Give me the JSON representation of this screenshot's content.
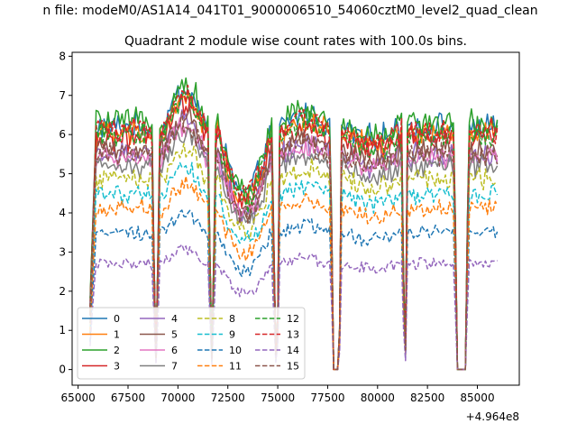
{
  "figure": {
    "suptitle": "n file: modeM0/AS1A14_041T01_9000006510_54060cztM0_level2_quad_clean",
    "title": "Quadrant 2 module wise count rates with 100.0s bins.",
    "x_offset_label": "+4.964e8"
  },
  "chart_data": {
    "type": "line",
    "title": "Quadrant 2 module wise count rates with 100.0s bins.",
    "xlabel": "",
    "ylabel": "",
    "xlim": [
      64700,
      87100
    ],
    "ylim": [
      -0.4,
      8.1
    ],
    "x_ticks": [
      65000,
      67500,
      70000,
      72500,
      75000,
      77500,
      80000,
      82500,
      85000
    ],
    "x_tick_labels": [
      "65000",
      "67500",
      "70000",
      "72500",
      "75000",
      "77500",
      "80000",
      "82500",
      "85000"
    ],
    "y_ticks": [
      0,
      1,
      2,
      3,
      4,
      5,
      6,
      7,
      8
    ],
    "y_tick_labels": [
      "0",
      "1",
      "2",
      "3",
      "4",
      "5",
      "6",
      "7",
      "8"
    ],
    "x_offset": "+4.964e8",
    "x_start": 65600,
    "x_step": 100,
    "gap_intervals": [
      [
        68750,
        69050
      ],
      [
        71550,
        71850
      ],
      [
        74750,
        75100
      ],
      [
        77650,
        78200
      ],
      [
        81250,
        81500
      ],
      [
        83850,
        84550
      ]
    ],
    "legend_location": "lower-left",
    "legend_columns": 4,
    "series": [
      {
        "name": "0",
        "color": "#1f77b4",
        "dash": "solid",
        "level": 6.2
      },
      {
        "name": "1",
        "color": "#ff7f0e",
        "dash": "solid",
        "level": 6.0
      },
      {
        "name": "2",
        "color": "#2ca02c",
        "dash": "solid",
        "level": 6.3
      },
      {
        "name": "3",
        "color": "#d62728",
        "dash": "solid",
        "level": 5.9
      },
      {
        "name": "4",
        "color": "#9467bd",
        "dash": "solid",
        "level": 5.5
      },
      {
        "name": "5",
        "color": "#8c564b",
        "dash": "solid",
        "level": 5.6
      },
      {
        "name": "6",
        "color": "#e377c2",
        "dash": "solid",
        "level": 5.4
      },
      {
        "name": "7",
        "color": "#7f7f7f",
        "dash": "solid",
        "level": 5.2
      },
      {
        "name": "8",
        "color": "#bcbd22",
        "dash": "dashed",
        "level": 4.9
      },
      {
        "name": "9",
        "color": "#17becf",
        "dash": "dashed",
        "level": 4.5
      },
      {
        "name": "10",
        "color": "#1f77b4",
        "dash": "dashed",
        "level": 3.5
      },
      {
        "name": "11",
        "color": "#ff7f0e",
        "dash": "dashed",
        "level": 4.1
      },
      {
        "name": "12",
        "color": "#2ca02c",
        "dash": "dashed",
        "level": 6.0
      },
      {
        "name": "13",
        "color": "#d62728",
        "dash": "dashed",
        "level": 6.1
      },
      {
        "name": "14",
        "color": "#9467bd",
        "dash": "dashed",
        "level": 2.7
      },
      {
        "name": "15",
        "color": "#8c564b",
        "dash": "dashed",
        "level": 5.5
      }
    ]
  }
}
